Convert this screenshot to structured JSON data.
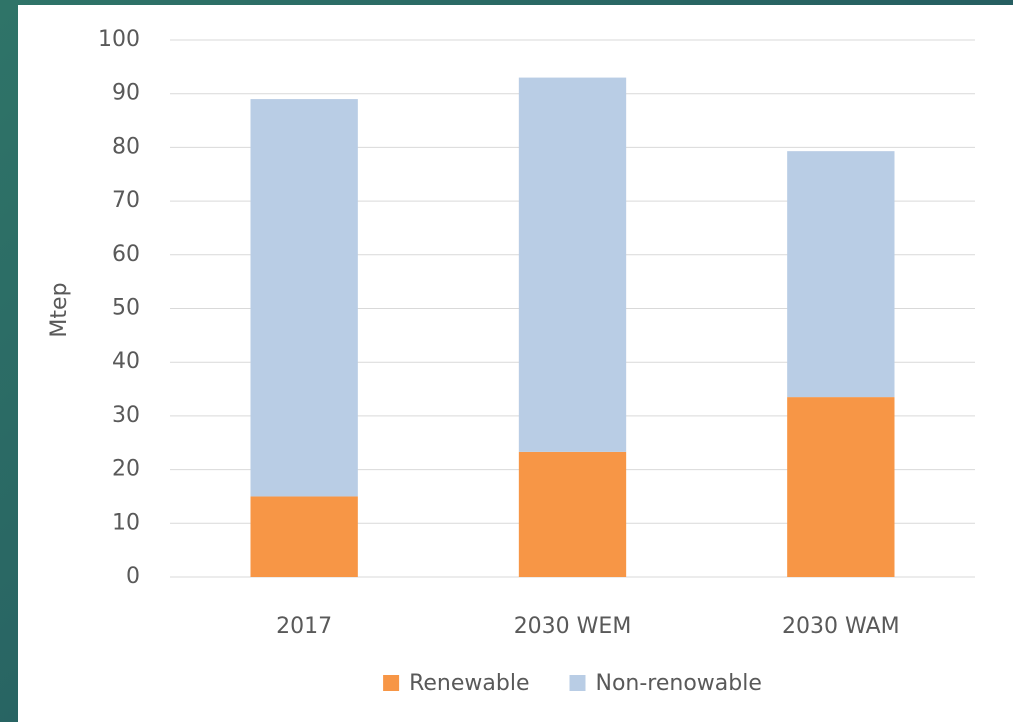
{
  "chart_data": {
    "type": "bar",
    "stacked": true,
    "y_label": "Mtep",
    "categories": [
      "2017",
      "2030 WEM",
      "2030 WAM"
    ],
    "series": [
      {
        "name": "Renewable",
        "color": "#f79646",
        "values": [
          15,
          23.3,
          33.5
        ]
      },
      {
        "name": "Non-renowable",
        "color": "#b9cde5",
        "values": [
          74,
          69.7,
          45.8
        ]
      }
    ],
    "ylim": [
      0,
      100
    ],
    "yticks": [
      0,
      10,
      20,
      30,
      40,
      50,
      60,
      70,
      80,
      90,
      100
    ],
    "grid": true,
    "legend": "bottom"
  }
}
